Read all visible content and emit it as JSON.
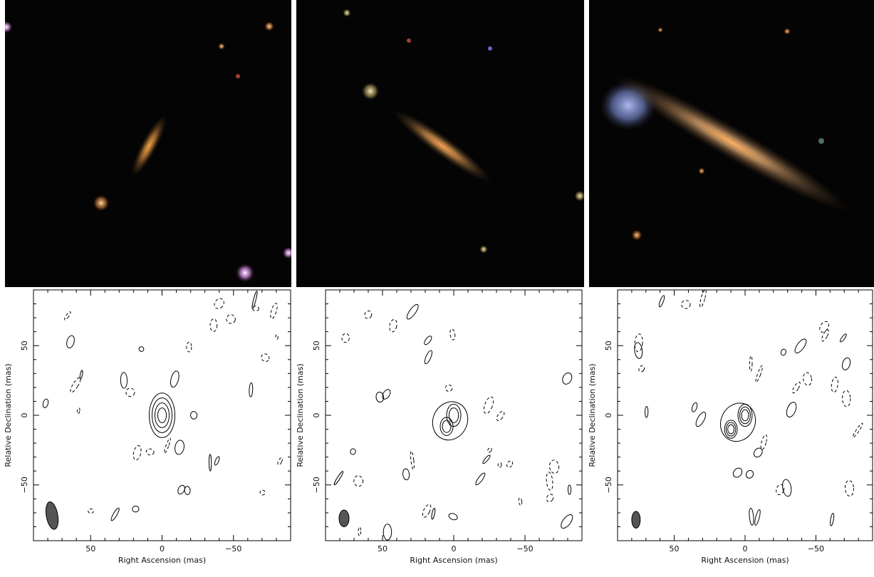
{
  "figure": {
    "optical_panels": [
      {
        "name": "optical-image-1"
      },
      {
        "name": "optical-image-2"
      },
      {
        "name": "optical-image-3"
      }
    ]
  },
  "chart_data": [
    {
      "type": "contour",
      "xlabel": "Right Ascension  (mas)",
      "ylabel": "Relative Declination  (mas)",
      "xlim": [
        90,
        -90
      ],
      "ylim": [
        -90,
        90
      ],
      "x_ticks": [
        50,
        0,
        -50
      ],
      "x_tick_labels": [
        "50",
        "0",
        "−50"
      ],
      "y_ticks": [
        50,
        0,
        -50
      ],
      "y_tick_labels": [
        "50",
        "0",
        "−50"
      ],
      "beam": {
        "x": 77,
        "y": -72,
        "major": 20,
        "minor": 8,
        "pa": -10
      },
      "source_peaks": [
        {
          "x": 0,
          "y": 0
        }
      ],
      "positive_contours": 4
    },
    {
      "type": "contour",
      "xlabel": "Right Ascension  (mas)",
      "ylabel": "Relative Declination  (mas)",
      "xlim": [
        90,
        -90
      ],
      "ylim": [
        -90,
        90
      ],
      "x_ticks": [
        50,
        0,
        -50
      ],
      "x_tick_labels": [
        "50",
        "0",
        "−50"
      ],
      "y_ticks": [
        50,
        0,
        -50
      ],
      "y_tick_labels": [
        "50",
        "0",
        "−50"
      ],
      "beam": {
        "x": 77,
        "y": -74,
        "major": 12,
        "minor": 7,
        "pa": 0
      },
      "source_peaks": [
        {
          "x": 0,
          "y": 0
        },
        {
          "x": 5,
          "y": -8
        }
      ],
      "positive_contours": 3
    },
    {
      "type": "contour",
      "xlabel": "Right Ascension  (mas)",
      "ylabel": "Relative Declination  (mas)",
      "xlim": [
        90,
        -90
      ],
      "ylim": [
        -90,
        90
      ],
      "x_ticks": [
        50,
        0,
        -50
      ],
      "x_tick_labels": [
        "50",
        "0",
        "−50"
      ],
      "y_ticks": [
        50,
        0,
        -50
      ],
      "y_tick_labels": [
        "50",
        "0",
        "−50"
      ],
      "beam": {
        "x": 77,
        "y": -75,
        "major": 12,
        "minor": 6,
        "pa": 0
      },
      "source_peaks": [
        {
          "x": 0,
          "y": 0
        },
        {
          "x": 10,
          "y": -10
        }
      ],
      "positive_contours": 4
    }
  ]
}
